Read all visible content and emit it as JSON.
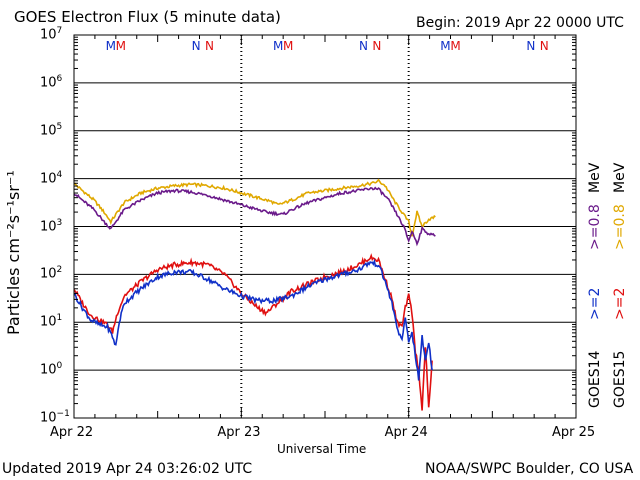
{
  "header": {
    "title": "GOES Electron Flux (5 minute data)",
    "begin": "Begin: 2019 Apr 22 0000 UTC"
  },
  "footer": {
    "updated": "Updated 2019 Apr 24 03:26:02 UTC",
    "source": "NOAA/SWPC Boulder, CO USA"
  },
  "legend": {
    "goes14": "GOES14",
    "goes15": "GOES15",
    "ge2_14": ">=2",
    "ge2_15": ">=2",
    "ge08_14": ">=0.8",
    "ge08_15": ">=0.8",
    "mev": "MeV"
  },
  "colors": {
    "goes14_ge2": "#1030c8",
    "goes15_ge2": "#e01010",
    "goes14_ge08": "#6a1a8a",
    "goes15_ge08": "#e0a800",
    "m_mark_blue": "#1030c8",
    "m_mark_red": "#e01010"
  },
  "chart_data": {
    "type": "line",
    "title": "GOES Electron Flux (5 minute data)",
    "xlabel": "Universal Time",
    "ylabel": "Particles cm⁻²s⁻¹sr⁻¹",
    "x_unit": "days since 2019 Apr 22 0000 UTC",
    "xlim": [
      0,
      3
    ],
    "ylim_log10": [
      -1,
      7
    ],
    "x_ticks": [
      {
        "x": 0,
        "label": "Apr 22"
      },
      {
        "x": 1,
        "label": "Apr 23"
      },
      {
        "x": 2,
        "label": "Apr 24"
      },
      {
        "x": 3,
        "label": "Apr 25"
      }
    ],
    "y_ticks": [
      {
        "exp": 7,
        "base": "10",
        "sup": "7"
      },
      {
        "exp": 6,
        "base": "10",
        "sup": "6"
      },
      {
        "exp": 5,
        "base": "10",
        "sup": "5"
      },
      {
        "exp": 4,
        "base": "10",
        "sup": "4"
      },
      {
        "exp": 3,
        "base": "10",
        "sup": "3"
      },
      {
        "exp": 2,
        "base": "10",
        "sup": "2"
      },
      {
        "exp": 1,
        "base": "10",
        "sup": "1"
      },
      {
        "exp": 0,
        "base": "10",
        "sup": "0"
      },
      {
        "exp": -1,
        "base": "10",
        "sup": "−1"
      }
    ],
    "threshold_lines_log10": [
      3
    ],
    "magnetopause_marks": [
      {
        "x": 0.22,
        "label": "M",
        "color": "m_mark_blue"
      },
      {
        "x": 0.28,
        "label": "M",
        "color": "m_mark_red"
      },
      {
        "x": 0.73,
        "label": "N",
        "color": "m_mark_blue"
      },
      {
        "x": 0.81,
        "label": "N",
        "color": "m_mark_red"
      },
      {
        "x": 1.22,
        "label": "M",
        "color": "m_mark_blue"
      },
      {
        "x": 1.28,
        "label": "M",
        "color": "m_mark_red"
      },
      {
        "x": 1.73,
        "label": "N",
        "color": "m_mark_blue"
      },
      {
        "x": 1.81,
        "label": "N",
        "color": "m_mark_red"
      },
      {
        "x": 2.22,
        "label": "M",
        "color": "m_mark_blue"
      },
      {
        "x": 2.28,
        "label": "M",
        "color": "m_mark_red"
      },
      {
        "x": 2.73,
        "label": "N",
        "color": "m_mark_blue"
      },
      {
        "x": 2.81,
        "label": "N",
        "color": "m_mark_red"
      }
    ],
    "series": [
      {
        "name": "GOES15 >=0.8 MeV",
        "color": "goes15_ge08",
        "noise": 0.03,
        "points": [
          [
            0,
            3.9
          ],
          [
            0.05,
            3.75
          ],
          [
            0.12,
            3.55
          ],
          [
            0.18,
            3.3
          ],
          [
            0.22,
            3.1
          ],
          [
            0.25,
            3.25
          ],
          [
            0.3,
            3.5
          ],
          [
            0.4,
            3.7
          ],
          [
            0.5,
            3.8
          ],
          [
            0.6,
            3.85
          ],
          [
            0.7,
            3.88
          ],
          [
            0.8,
            3.85
          ],
          [
            0.9,
            3.8
          ],
          [
            1.0,
            3.7
          ],
          [
            1.1,
            3.6
          ],
          [
            1.18,
            3.52
          ],
          [
            1.22,
            3.45
          ],
          [
            1.3,
            3.55
          ],
          [
            1.4,
            3.7
          ],
          [
            1.5,
            3.75
          ],
          [
            1.6,
            3.8
          ],
          [
            1.7,
            3.85
          ],
          [
            1.78,
            3.9
          ],
          [
            1.82,
            3.95
          ],
          [
            1.86,
            3.85
          ],
          [
            1.92,
            3.5
          ],
          [
            1.96,
            3.3
          ],
          [
            2.0,
            3.1
          ],
          [
            2.02,
            2.8
          ],
          [
            2.05,
            3.3
          ],
          [
            2.08,
            3.0
          ],
          [
            2.12,
            3.15
          ],
          [
            2.16,
            3.2
          ]
        ]
      },
      {
        "name": "GOES14 >=0.8 MeV",
        "color": "goes14_ge08",
        "noise": 0.03,
        "points": [
          [
            0,
            3.7
          ],
          [
            0.05,
            3.55
          ],
          [
            0.12,
            3.35
          ],
          [
            0.18,
            3.1
          ],
          [
            0.22,
            2.95
          ],
          [
            0.25,
            3.1
          ],
          [
            0.3,
            3.35
          ],
          [
            0.4,
            3.55
          ],
          [
            0.5,
            3.7
          ],
          [
            0.6,
            3.75
          ],
          [
            0.7,
            3.72
          ],
          [
            0.8,
            3.65
          ],
          [
            0.9,
            3.55
          ],
          [
            1.0,
            3.45
          ],
          [
            1.1,
            3.35
          ],
          [
            1.15,
            3.3
          ],
          [
            1.25,
            3.25
          ],
          [
            1.3,
            3.35
          ],
          [
            1.4,
            3.5
          ],
          [
            1.5,
            3.6
          ],
          [
            1.6,
            3.7
          ],
          [
            1.7,
            3.75
          ],
          [
            1.78,
            3.8
          ],
          [
            1.82,
            3.78
          ],
          [
            1.88,
            3.55
          ],
          [
            1.93,
            3.25
          ],
          [
            1.97,
            3.0
          ],
          [
            2.0,
            2.7
          ],
          [
            2.02,
            2.9
          ],
          [
            2.05,
            2.65
          ],
          [
            2.08,
            2.95
          ],
          [
            2.12,
            2.85
          ],
          [
            2.16,
            2.8
          ]
        ]
      },
      {
        "name": "GOES15 >=2 MeV",
        "color": "goes15_ge2",
        "noise": 0.05,
        "points": [
          [
            0,
            1.7
          ],
          [
            0.05,
            1.4
          ],
          [
            0.1,
            1.15
          ],
          [
            0.15,
            1.05
          ],
          [
            0.2,
            0.95
          ],
          [
            0.23,
            0.8
          ],
          [
            0.26,
            1.2
          ],
          [
            0.3,
            1.55
          ],
          [
            0.4,
            1.85
          ],
          [
            0.5,
            2.1
          ],
          [
            0.6,
            2.2
          ],
          [
            0.7,
            2.25
          ],
          [
            0.8,
            2.2
          ],
          [
            0.9,
            2.0
          ],
          [
            1.0,
            1.6
          ],
          [
            1.1,
            1.3
          ],
          [
            1.15,
            1.2
          ],
          [
            1.2,
            1.35
          ],
          [
            1.3,
            1.65
          ],
          [
            1.4,
            1.8
          ],
          [
            1.5,
            1.95
          ],
          [
            1.6,
            2.05
          ],
          [
            1.7,
            2.2
          ],
          [
            1.77,
            2.35
          ],
          [
            1.82,
            2.3
          ],
          [
            1.86,
            1.9
          ],
          [
            1.9,
            1.5
          ],
          [
            1.93,
            1.0
          ],
          [
            1.96,
            0.9
          ],
          [
            1.98,
            1.3
          ],
          [
            2.0,
            1.55
          ],
          [
            2.02,
            1.2
          ],
          [
            2.04,
            0.4
          ],
          [
            2.06,
            0.0
          ],
          [
            2.08,
            -0.8
          ],
          [
            2.1,
            0.5
          ],
          [
            2.12,
            -0.8
          ],
          [
            2.14,
            0.2
          ]
        ]
      },
      {
        "name": "GOES14 >=2 MeV",
        "color": "goes14_ge2",
        "noise": 0.05,
        "points": [
          [
            0,
            1.6
          ],
          [
            0.05,
            1.3
          ],
          [
            0.1,
            1.05
          ],
          [
            0.15,
            0.95
          ],
          [
            0.2,
            0.9
          ],
          [
            0.23,
            0.7
          ],
          [
            0.25,
            0.5
          ],
          [
            0.27,
            1.0
          ],
          [
            0.3,
            1.4
          ],
          [
            0.4,
            1.7
          ],
          [
            0.5,
            1.95
          ],
          [
            0.6,
            2.05
          ],
          [
            0.7,
            2.05
          ],
          [
            0.8,
            1.9
          ],
          [
            0.9,
            1.7
          ],
          [
            1.0,
            1.55
          ],
          [
            1.1,
            1.45
          ],
          [
            1.2,
            1.45
          ],
          [
            1.3,
            1.55
          ],
          [
            1.4,
            1.75
          ],
          [
            1.5,
            1.9
          ],
          [
            1.6,
            2.0
          ],
          [
            1.7,
            2.1
          ],
          [
            1.77,
            2.25
          ],
          [
            1.82,
            2.2
          ],
          [
            1.86,
            1.85
          ],
          [
            1.9,
            1.4
          ],
          [
            1.93,
            0.9
          ],
          [
            1.96,
            0.6
          ],
          [
            1.98,
            1.1
          ],
          [
            2.0,
            0.6
          ],
          [
            2.02,
            0.8
          ],
          [
            2.04,
            0.3
          ],
          [
            2.06,
            -0.2
          ],
          [
            2.08,
            0.7
          ],
          [
            2.1,
            0.2
          ],
          [
            2.12,
            0.6
          ],
          [
            2.14,
            0.0
          ]
        ]
      }
    ]
  }
}
